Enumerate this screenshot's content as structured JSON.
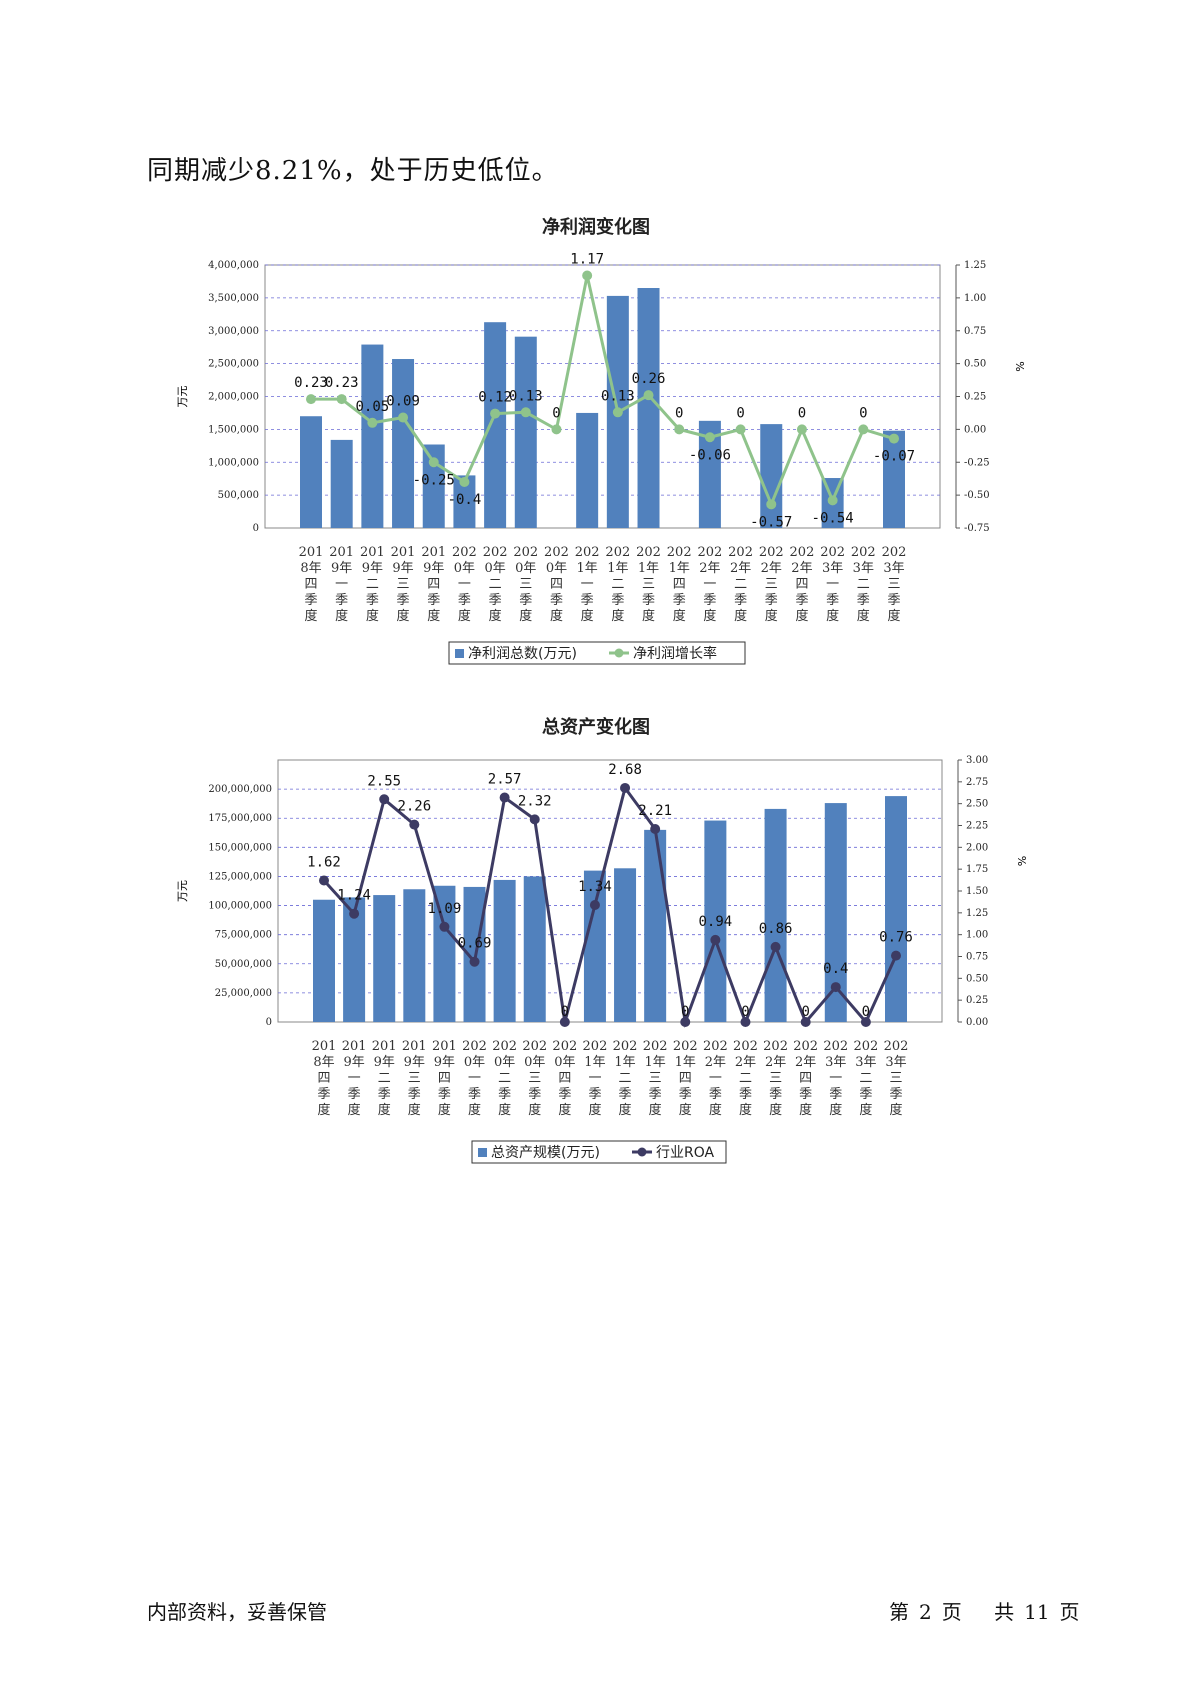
{
  "intro_text": "同期减少8.21%，处于历史低位。",
  "quarters": [
    [
      "201",
      "8年",
      "四",
      "季",
      "度"
    ],
    [
      "201",
      "9年",
      "一",
      "季",
      "度"
    ],
    [
      "201",
      "9年",
      "二",
      "季",
      "度"
    ],
    [
      "201",
      "9年",
      "三",
      "季",
      "度"
    ],
    [
      "201",
      "9年",
      "四",
      "季",
      "度"
    ],
    [
      "202",
      "0年",
      "一",
      "季",
      "度"
    ],
    [
      "202",
      "0年",
      "二",
      "季",
      "度"
    ],
    [
      "202",
      "0年",
      "三",
      "季",
      "度"
    ],
    [
      "202",
      "0年",
      "四",
      "季",
      "度"
    ],
    [
      "202",
      "1年",
      "一",
      "季",
      "度"
    ],
    [
      "202",
      "1年",
      "二",
      "季",
      "度"
    ],
    [
      "202",
      "1年",
      "三",
      "季",
      "度"
    ],
    [
      "202",
      "1年",
      "四",
      "季",
      "度"
    ],
    [
      "202",
      "2年",
      "一",
      "季",
      "度"
    ],
    [
      "202",
      "2年",
      "二",
      "季",
      "度"
    ],
    [
      "202",
      "2年",
      "三",
      "季",
      "度"
    ],
    [
      "202",
      "2年",
      "四",
      "季",
      "度"
    ],
    [
      "202",
      "3年",
      "一",
      "季",
      "度"
    ],
    [
      "202",
      "3年",
      "二",
      "季",
      "度"
    ],
    [
      "202",
      "3年",
      "三",
      "季",
      "度"
    ]
  ],
  "chart_data": [
    {
      "type": "bar",
      "title": "净利润变化图",
      "ylabel": "万元",
      "y2label": "%",
      "ylim": [
        0,
        4000000
      ],
      "yticks": [
        "4,000,000",
        "3,500,000",
        "3,000,000",
        "2,500,000",
        "2,000,000",
        "1,500,000",
        "1,000,000",
        "500,000",
        "0"
      ],
      "y2lim": [
        -0.75,
        1.25
      ],
      "y2ticks": [
        "1.25",
        "1.00",
        "0.75",
        "0.50",
        "0.25",
        "0.00",
        "-0.25",
        "-0.50",
        "-0.75"
      ],
      "grid": true,
      "legend_placement": "bottom",
      "series": [
        {
          "name": "净利润总数(万元)",
          "kind": "bar",
          "color": "#5181bd",
          "values": [
            1700000,
            1340000,
            2790000,
            2570000,
            1270000,
            800000,
            3130000,
            2910000,
            null,
            1750000,
            3530000,
            3650000,
            null,
            1630000,
            null,
            1580000,
            null,
            760000,
            null,
            1480000
          ]
        },
        {
          "name": "净利润增长率",
          "kind": "line",
          "color": "#8fc38b",
          "values": [
            0.23,
            0.23,
            0.05,
            0.09,
            -0.25,
            -0.4,
            0.12,
            0.13,
            0,
            1.17,
            0.13,
            0.26,
            0,
            -0.06,
            0,
            -0.57,
            0,
            -0.54,
            0,
            -0.07
          ],
          "labels": [
            "0.23",
            "0.23",
            "0.05",
            "0.09",
            "-0.25",
            "-0.4",
            "0.12",
            "0.13",
            "0",
            "1.17",
            "0.13",
            "0.26",
            "0",
            "-0.06",
            "0",
            "-0.57",
            "0",
            "-0.54",
            "0",
            "-0.07"
          ]
        }
      ]
    },
    {
      "type": "bar",
      "title": "总资产变化图",
      "ylabel": "万元",
      "y2label": "%",
      "ylim": [
        0,
        225000000
      ],
      "yticks": [
        "200,000,000",
        "175,000,000",
        "150,000,000",
        "125,000,000",
        "100,000,000",
        "75,000,000",
        "50,000,000",
        "25,000,000",
        "0"
      ],
      "y2lim": [
        0,
        3.0
      ],
      "y2ticks": [
        "3.00",
        "2.75",
        "2.50",
        "2.25",
        "2.00",
        "1.75",
        "1.50",
        "1.25",
        "1.00",
        "0.75",
        "0.50",
        "0.25",
        "0.00"
      ],
      "grid": true,
      "legend_placement": "bottom",
      "series": [
        {
          "name": "总资产规模(万元)",
          "kind": "bar",
          "color": "#5181bd",
          "values": [
            105000000,
            107000000,
            109000000,
            114000000,
            117000000,
            116000000,
            122000000,
            125000000,
            null,
            130000000,
            132000000,
            165000000,
            null,
            173000000,
            null,
            183000000,
            null,
            188000000,
            null,
            194000000
          ]
        },
        {
          "name": "行业ROA",
          "kind": "line",
          "color": "#3d3b63",
          "values": [
            1.62,
            1.24,
            2.55,
            2.26,
            1.09,
            0.69,
            2.57,
            2.32,
            0,
            1.34,
            2.68,
            2.21,
            0,
            0.94,
            0,
            0.86,
            0,
            0.4,
            0,
            0.76
          ],
          "labels": [
            "1.62",
            "1.24",
            "2.55",
            "2.26",
            "1.09",
            "0.69",
            "2.57",
            "2.32",
            "0",
            "1.34",
            "2.68",
            "2.21",
            "0",
            "0.94",
            "0",
            "0.86",
            "0",
            "0.4",
            "0",
            "0.76"
          ]
        }
      ]
    }
  ],
  "footer": {
    "left": "内部资料，妥善保管",
    "page_prefix": "第",
    "page_number": "2",
    "page_suffix": "页",
    "total_prefix": "共",
    "total_pages": "11",
    "total_suffix": "页"
  }
}
